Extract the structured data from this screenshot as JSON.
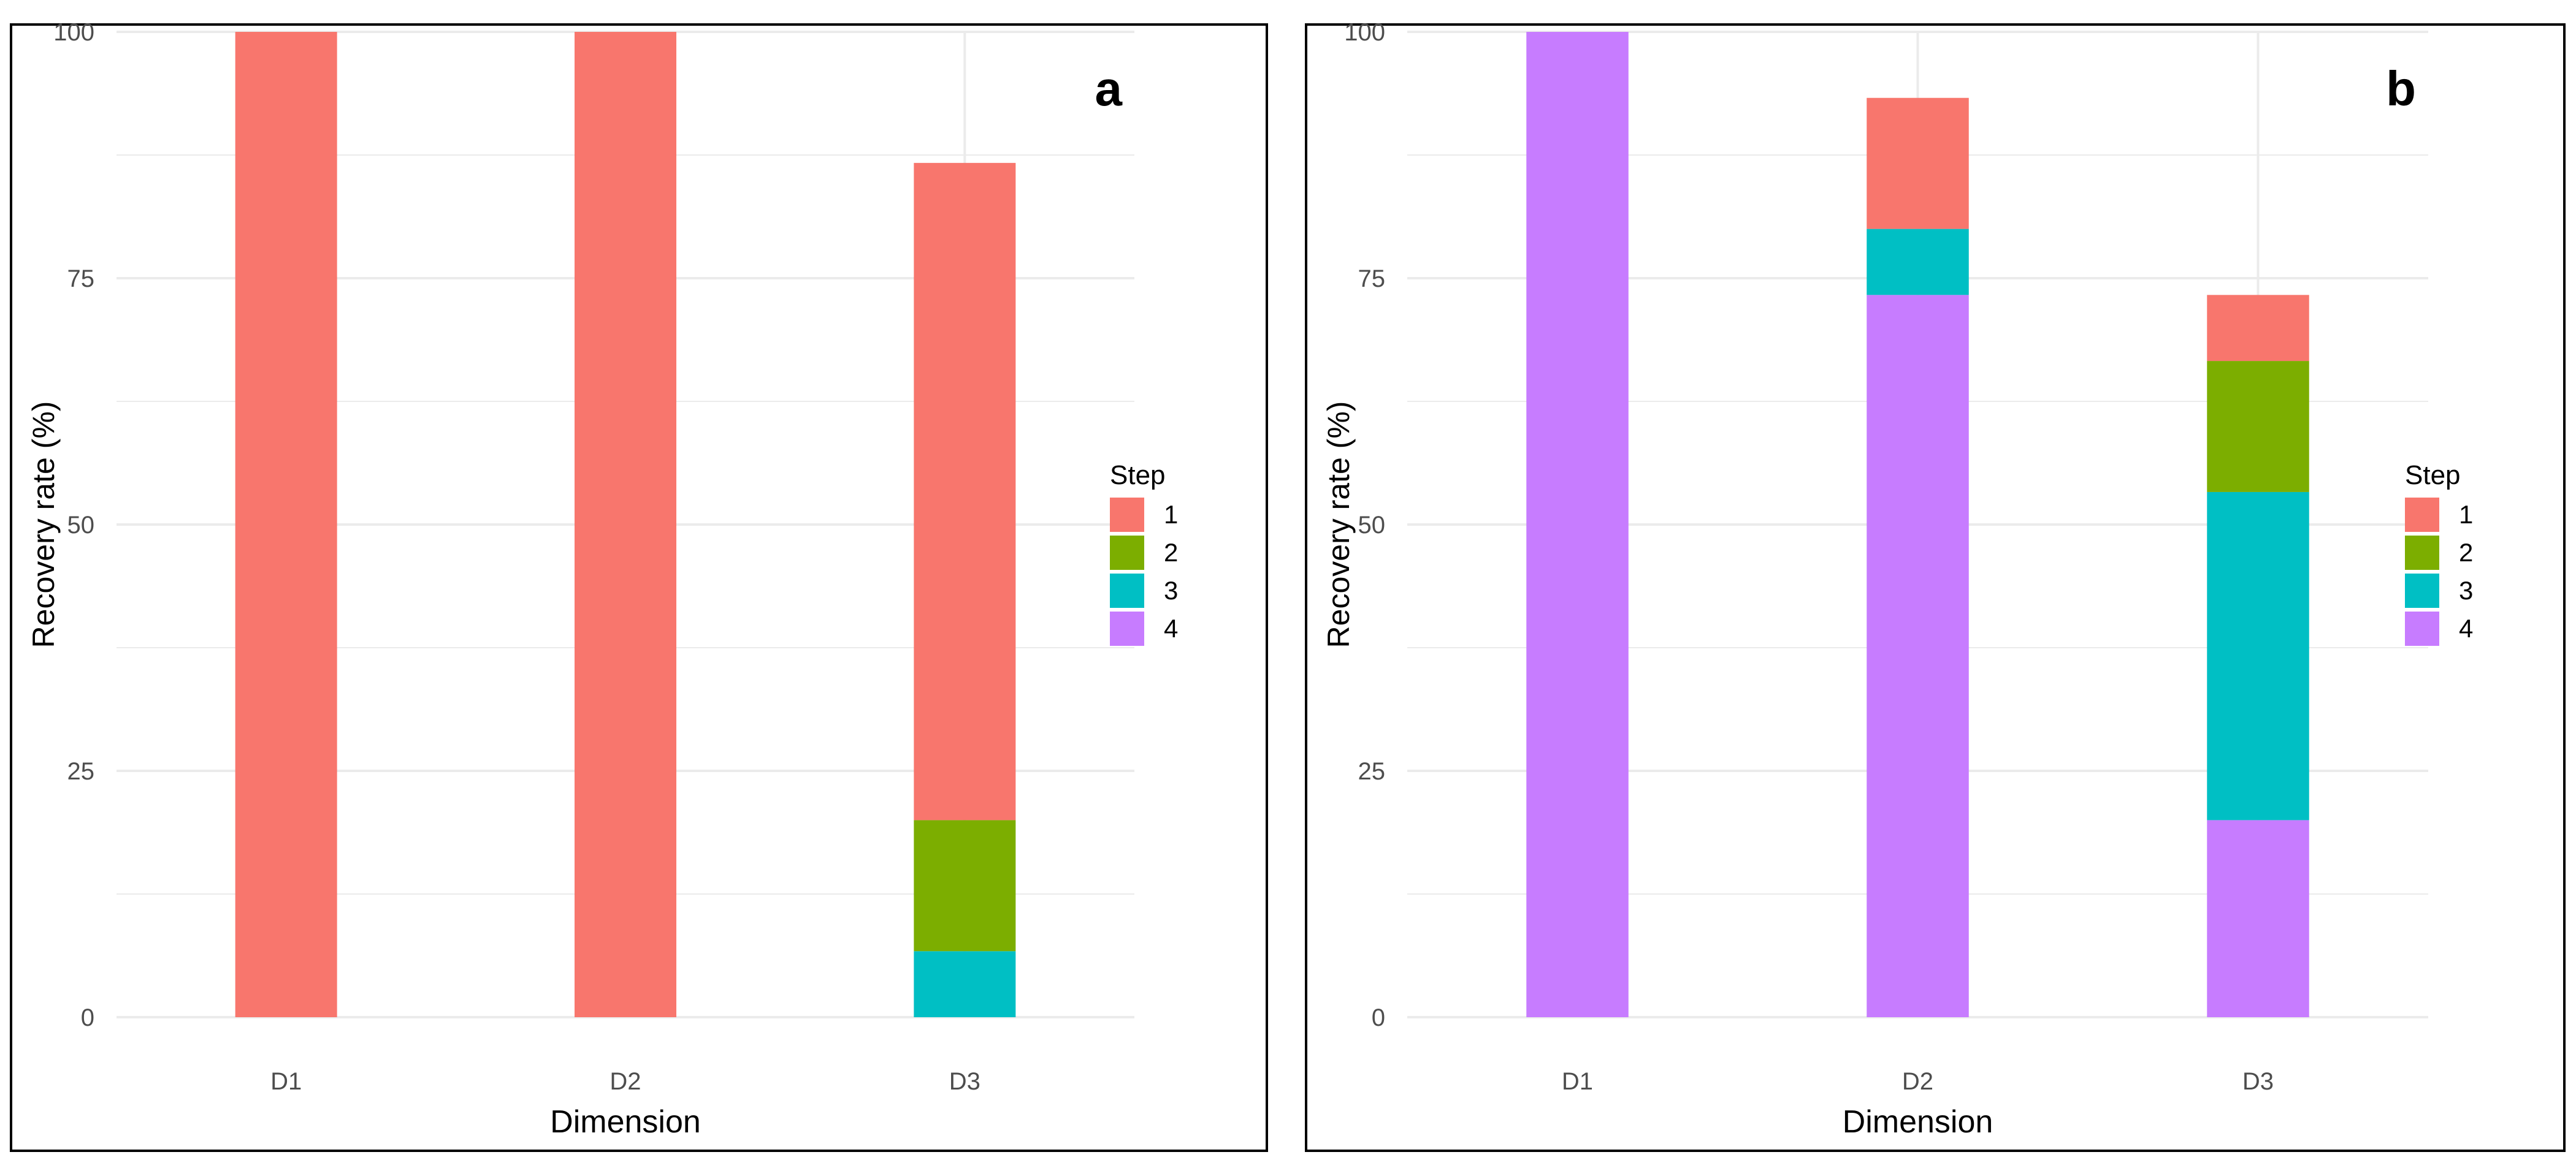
{
  "figure": {
    "panel_labels": [
      "a",
      "b"
    ]
  },
  "legend": {
    "title": "Step",
    "entries": [
      "1",
      "2",
      "3",
      "4"
    ]
  },
  "colors": {
    "1": "#F8766D",
    "2": "#7CAE00",
    "3": "#00BFC4",
    "4": "#C77CFF"
  },
  "chart_data": [
    {
      "type": "bar",
      "stacked": true,
      "panel": "a",
      "title": "",
      "xlabel": "Dimension",
      "ylabel": "Recovery rate (%)",
      "ylim": [
        0,
        100
      ],
      "yticks": [
        "0",
        "25",
        "50",
        "75",
        "100"
      ],
      "categories": [
        "D1",
        "D2",
        "D3"
      ],
      "grid": true,
      "legend_position": "right",
      "series": [
        {
          "name": "1",
          "values": [
            100,
            100,
            66.7
          ]
        },
        {
          "name": "2",
          "values": [
            0,
            0,
            13.3
          ]
        },
        {
          "name": "3",
          "values": [
            0,
            0,
            6.7
          ]
        },
        {
          "name": "4",
          "values": [
            0,
            0,
            0
          ]
        }
      ]
    },
    {
      "type": "bar",
      "stacked": true,
      "panel": "b",
      "title": "",
      "xlabel": "Dimension",
      "ylabel": "Recovery rate (%)",
      "ylim": [
        0,
        100
      ],
      "yticks": [
        "0",
        "25",
        "50",
        "75",
        "100"
      ],
      "categories": [
        "D1",
        "D2",
        "D3"
      ],
      "grid": true,
      "legend_position": "right",
      "series": [
        {
          "name": "1",
          "values": [
            0,
            13.3,
            6.7
          ]
        },
        {
          "name": "2",
          "values": [
            0,
            0,
            13.3
          ]
        },
        {
          "name": "3",
          "values": [
            0,
            6.7,
            33.3
          ]
        },
        {
          "name": "4",
          "values": [
            100,
            73.3,
            20
          ]
        }
      ]
    }
  ]
}
